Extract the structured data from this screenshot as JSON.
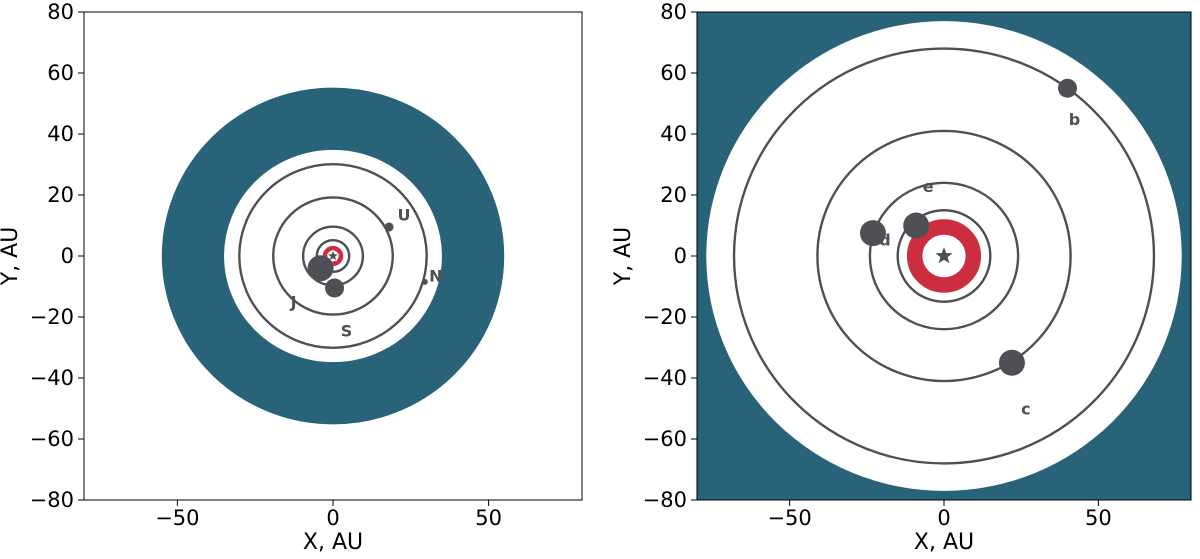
{
  "chart_data": [
    {
      "type": "scatter",
      "title": "",
      "xlabel": "X, AU",
      "ylabel": "Y, AU",
      "xlim": [
        -80,
        80
      ],
      "ylim": [
        -80,
        80
      ],
      "xticks": [
        -50,
        0,
        50
      ],
      "yticks": [
        -80,
        -60,
        -40,
        -20,
        0,
        20,
        40,
        60,
        80
      ],
      "xtick_labels": [
        "−50",
        "0",
        "50"
      ],
      "ytick_labels": [
        "−80",
        "−60",
        "−40",
        "−20",
        "0",
        "20",
        "40",
        "60",
        "80"
      ],
      "background": "#ffffff",
      "grid": false,
      "disks": [
        {
          "kind": "outer-debris-disk",
          "r_inner": 35,
          "r_outer": 55,
          "color": "#28637a"
        },
        {
          "kind": "inner-belt",
          "r_inner": 1.8,
          "r_outer": 3.3,
          "color": "#cc2e40"
        }
      ],
      "orbits": [
        5.2,
        9.6,
        19.2,
        30.1
      ],
      "star": {
        "x": 0,
        "y": 0
      },
      "planets": [
        {
          "label": "J",
          "x": -4,
          "y": -4,
          "size": "large"
        },
        {
          "label": "S",
          "x": 0.5,
          "y": -10.5,
          "size": "medium"
        },
        {
          "label": "U",
          "x": 18,
          "y": 9.5,
          "size": "small"
        },
        {
          "label": "N",
          "x": 29.5,
          "y": -8.5,
          "size": "tiny"
        }
      ],
      "colors": {
        "orbit": "#4f4f56",
        "planet": "#4f4f56",
        "star": "#4f4f56"
      }
    },
    {
      "type": "scatter",
      "title": "",
      "xlabel": "X, AU",
      "ylabel": "Y, AU",
      "xlim": [
        -80,
        80
      ],
      "ylim": [
        -80,
        80
      ],
      "xticks": [
        -50,
        0,
        50
      ],
      "yticks": [
        -80,
        -60,
        -40,
        -20,
        0,
        20,
        40,
        60,
        80
      ],
      "xtick_labels": [
        "−50",
        "0",
        "50"
      ],
      "ytick_labels": [
        "−80",
        "−60",
        "−40",
        "−20",
        "0",
        "20",
        "40",
        "60",
        "80"
      ],
      "background": "#28637a",
      "grid": false,
      "disks": [
        {
          "kind": "debris-disk-gap",
          "r_inner": 0,
          "r_outer": 77,
          "color": "#ffffff"
        },
        {
          "kind": "inner-belt",
          "r_inner": 7,
          "r_outer": 12,
          "color": "#cc2e40"
        }
      ],
      "orbits": [
        15,
        24,
        41,
        68
      ],
      "star": {
        "x": 0,
        "y": 0
      },
      "planets": [
        {
          "label": "b",
          "x": 40,
          "y": 55,
          "size": "medium"
        },
        {
          "label": "c",
          "x": 22,
          "y": -35,
          "size": "large"
        },
        {
          "label": "d",
          "x": -23,
          "y": 7.5,
          "size": "large"
        },
        {
          "label": "e",
          "x": -9,
          "y": 10,
          "size": "large"
        }
      ],
      "colors": {
        "orbit": "#4f4f56",
        "planet": "#4f4f56",
        "star": "#4f4f56"
      }
    }
  ]
}
